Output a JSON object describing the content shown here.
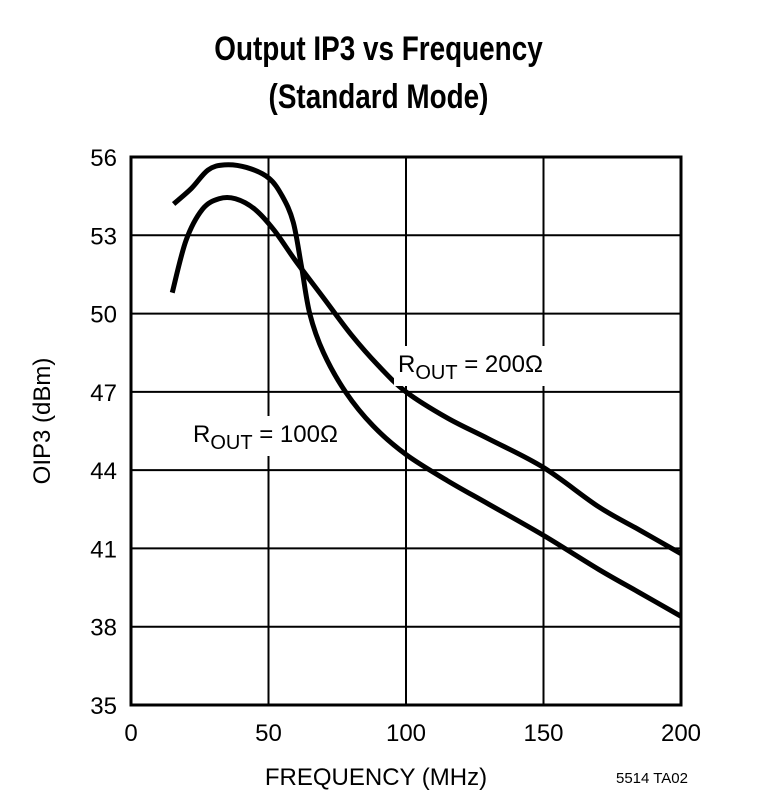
{
  "chart_data": {
    "type": "line",
    "title": "Output IP3 vs Frequency",
    "subtitle": "(Standard Mode)",
    "xlabel": "FREQUENCY (MHz)",
    "ylabel": "OIP3 (dBm)",
    "xlim": [
      0,
      200
    ],
    "ylim": [
      35,
      56
    ],
    "xticks": [
      0,
      50,
      100,
      150,
      200
    ],
    "yticks": [
      35,
      38,
      41,
      44,
      47,
      50,
      53,
      56
    ],
    "grid": true,
    "line_color": "#000000",
    "footnote": "5514 TA02",
    "series": [
      {
        "name": "ROUT = 100Ω",
        "label_main": "R",
        "label_sub": "OUT",
        "label_rest": " = 100Ω",
        "x": [
          15.5,
          22,
          28,
          34,
          42,
          50,
          55,
          59,
          62,
          65,
          70,
          78,
          88,
          100,
          115,
          130,
          150,
          170,
          185,
          200
        ],
        "y": [
          54.2,
          54.8,
          55.5,
          55.7,
          55.6,
          55.2,
          54.5,
          53.5,
          51.8,
          50.0,
          48.5,
          47.0,
          45.7,
          44.6,
          43.6,
          42.7,
          41.5,
          40.2,
          39.3,
          38.4
        ]
      },
      {
        "name": "ROUT = 200Ω",
        "label_main": "R",
        "label_sub": "OUT",
        "label_rest": " = 200Ω",
        "x": [
          15,
          20,
          26,
          32,
          38,
          45,
          52,
          60,
          70,
          80,
          90,
          100,
          115,
          130,
          150,
          170,
          185,
          200
        ],
        "y": [
          50.8,
          52.8,
          54.0,
          54.4,
          54.4,
          54.0,
          53.2,
          52.0,
          50.6,
          49.2,
          48.0,
          47.0,
          46.0,
          45.2,
          44.1,
          42.6,
          41.7,
          40.8
        ]
      }
    ]
  }
}
